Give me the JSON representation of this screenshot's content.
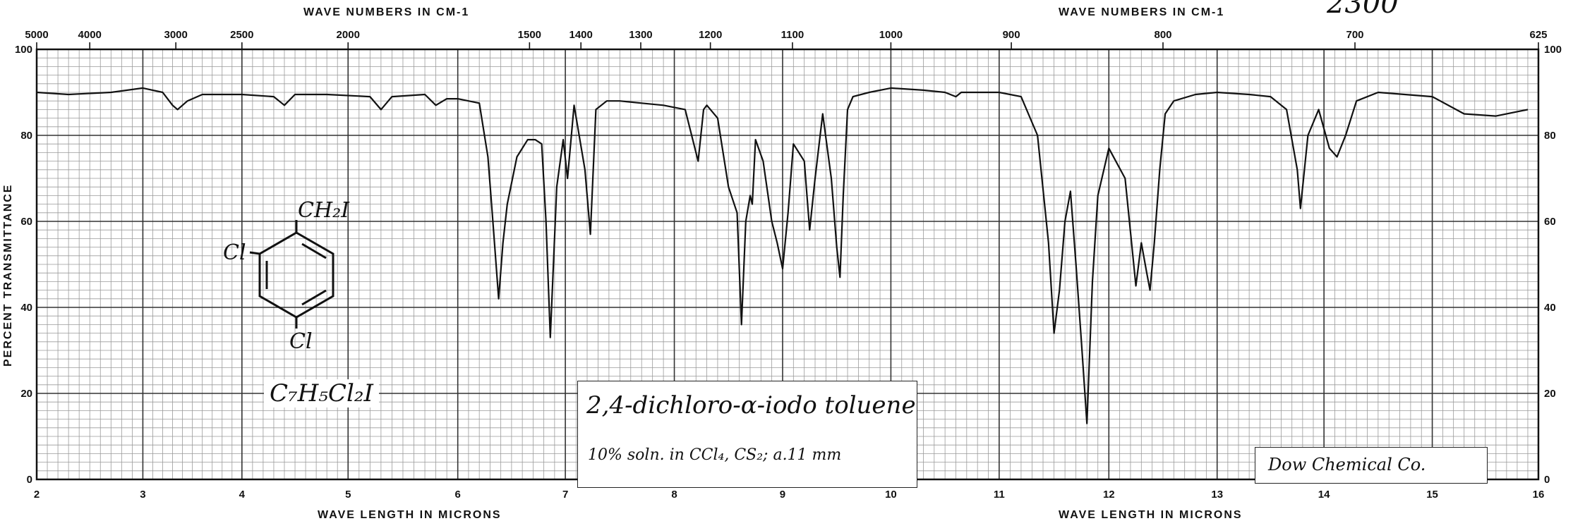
{
  "chart_data": {
    "type": "line",
    "title": "2,4-dichloro-α-iodo toluene",
    "subtitle": "10% soln. in CCl₄, CS₂; a.11 mm",
    "source": "Dow Chemical Co.",
    "formula": "C₇H₅Cl₂I",
    "structure_labels": {
      "top": "CH₂I",
      "left": "Cl",
      "bottom": "Cl"
    },
    "corner_note": "2300",
    "xlabel_bottom": "WAVE LENGTH IN MICRONS",
    "xlabel_top": "WAVE NUMBERS IN CM-1",
    "ylabel": "PERCENT TRANSMITTANCE",
    "xlim": [
      2,
      16
    ],
    "ylim": [
      0,
      100
    ],
    "bottom_ticks": [
      "2",
      "3",
      "4",
      "5",
      "6",
      "7",
      "8",
      "9",
      "10",
      "11",
      "12",
      "13",
      "14",
      "15",
      "16"
    ],
    "top_ticks": [
      {
        "label": "5000",
        "micron": 2.0
      },
      {
        "label": "4000",
        "micron": 2.5
      },
      {
        "label": "3000",
        "micron": 3.333
      },
      {
        "label": "2500",
        "micron": 4.0
      },
      {
        "label": "2000",
        "micron": 5.0
      },
      {
        "label": "1500",
        "micron": 6.667
      },
      {
        "label": "1400",
        "micron": 7.143
      },
      {
        "label": "1300",
        "micron": 7.692
      },
      {
        "label": "1200",
        "micron": 8.333
      },
      {
        "label": "1100",
        "micron": 9.091
      },
      {
        "label": "1000",
        "micron": 10.0
      },
      {
        "label": "900",
        "micron": 11.111
      },
      {
        "label": "800",
        "micron": 12.5
      },
      {
        "label": "700",
        "micron": 14.286
      },
      {
        "label": "625",
        "micron": 16.0
      }
    ],
    "y_ticks_left": [
      "0",
      "20",
      "40",
      "60",
      "80",
      "100"
    ],
    "y_ticks_right": [
      "0",
      "20",
      "40",
      "60",
      "80",
      "100"
    ],
    "grid": true,
    "series": [
      {
        "x": [
          2.0,
          2.3,
          2.7,
          3.0,
          3.2,
          3.3,
          3.35,
          3.45,
          3.6,
          4.0,
          4.3,
          4.4,
          4.5,
          4.8,
          5.2,
          5.3,
          5.4,
          5.7,
          5.8,
          5.9,
          6.0,
          6.1,
          6.2,
          6.28,
          6.32,
          6.38,
          6.42,
          6.46,
          6.55,
          6.65,
          6.72,
          6.78,
          6.82,
          6.86,
          6.92,
          6.98,
          7.02,
          7.08,
          7.18,
          7.23,
          7.28,
          7.38,
          7.5,
          7.7,
          7.9,
          8.1,
          8.22,
          8.27,
          8.3,
          8.4,
          8.5,
          8.58,
          8.62,
          8.66,
          8.7,
          8.72,
          8.75,
          8.82,
          8.9,
          8.95,
          9.0,
          9.05,
          9.1,
          9.2,
          9.25,
          9.3,
          9.37,
          9.45,
          9.5,
          9.53,
          9.56,
          9.6,
          9.65,
          9.8,
          10.0,
          10.3,
          10.5,
          10.6,
          10.65,
          10.75,
          11.0,
          11.2,
          11.35,
          11.45,
          11.5,
          11.55,
          11.6,
          11.65,
          11.7,
          11.75,
          11.8,
          11.85,
          11.9,
          12.0,
          12.15,
          12.25,
          12.3,
          12.35,
          12.38,
          12.42,
          12.47,
          12.52,
          12.6,
          12.8,
          13.0,
          13.3,
          13.5,
          13.65,
          13.75,
          13.78,
          13.85,
          13.95,
          14.05,
          14.12,
          14.2,
          14.3,
          14.5,
          15.0,
          15.3,
          15.6,
          15.9
        ],
        "y": [
          90,
          89.5,
          90,
          91,
          90,
          87,
          86,
          88,
          89.5,
          89.5,
          89,
          87,
          89.5,
          89.5,
          89,
          86,
          89,
          89.5,
          87,
          88.5,
          88.5,
          88,
          87.5,
          75,
          62,
          42,
          55,
          64,
          75,
          79,
          79,
          78,
          60,
          33,
          68,
          79,
          70,
          87,
          72,
          57,
          86,
          88,
          88,
          87.5,
          87,
          86,
          74,
          86,
          87,
          84,
          68,
          62,
          36,
          60,
          66,
          64,
          79,
          74,
          60,
          55,
          49,
          62,
          78,
          74,
          58,
          70,
          85,
          70,
          54,
          47,
          66,
          86,
          89,
          90,
          91,
          90.5,
          90,
          89,
          90,
          90,
          90,
          89,
          80,
          55,
          34,
          44,
          60,
          67,
          50,
          32,
          13,
          46,
          66,
          77,
          70,
          45,
          55,
          48,
          44,
          55,
          72,
          85,
          88,
          89.5,
          90,
          89.5,
          89,
          86,
          72,
          63,
          80,
          86,
          77,
          75,
          80,
          88,
          90,
          89,
          85,
          84.5,
          86
        ]
      }
    ],
    "annotations": [
      "2,4-dichloro-α-iodo toluene",
      "10% soln. in CCl₄, CS₂; a.11 mm",
      "Dow Chemical Co.",
      "C₇H₅Cl₂I"
    ]
  }
}
